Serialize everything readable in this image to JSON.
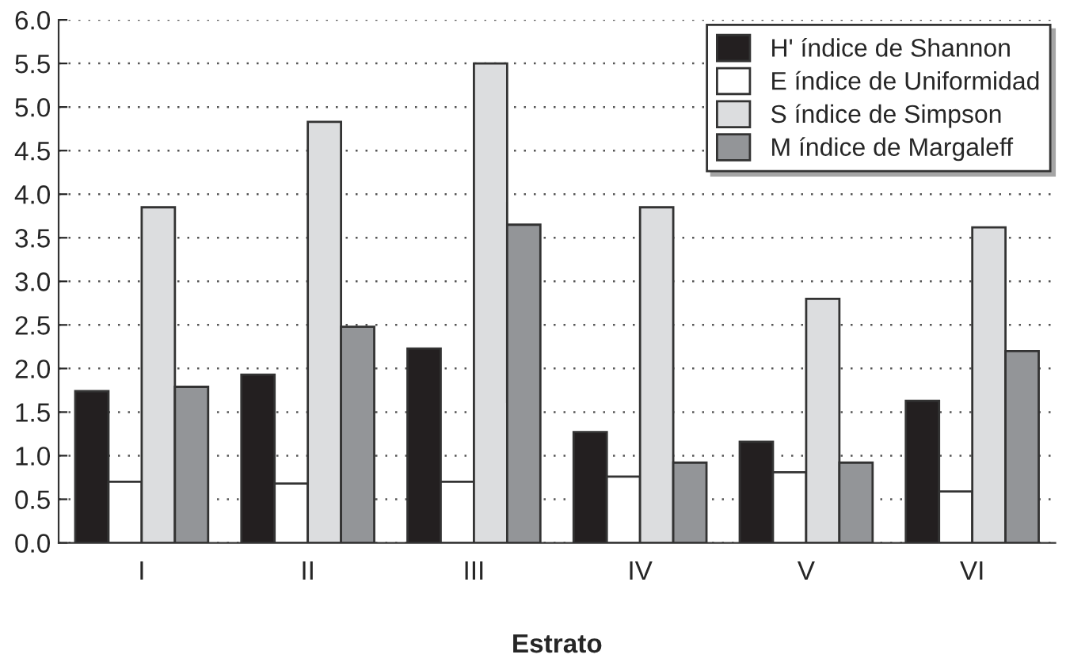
{
  "chart_data": {
    "type": "bar",
    "xlabel": "Estrato",
    "categories": [
      "I",
      "II",
      "III",
      "IV",
      "V",
      "VI"
    ],
    "series": [
      {
        "name": "H' índice de Shannon",
        "color": "#231f20",
        "values": [
          1.74,
          1.93,
          2.23,
          1.27,
          1.16,
          1.63
        ]
      },
      {
        "name": "E índice de Uniformidad",
        "color": "#ffffff",
        "values": [
          0.7,
          0.68,
          0.7,
          0.76,
          0.81,
          0.59
        ]
      },
      {
        "name": "S índice de Simpson",
        "color": "#dcdddf",
        "values": [
          3.85,
          4.83,
          5.5,
          3.85,
          2.8,
          3.62
        ]
      },
      {
        "name": "M índice de Margaleff",
        "color": "#939598",
        "values": [
          1.79,
          2.48,
          3.65,
          0.92,
          0.92,
          2.2
        ]
      }
    ],
    "ylim": [
      0,
      6
    ],
    "yticks": [
      {
        "value": 0,
        "label": "0.0"
      },
      {
        "value": 0.5,
        "label": "0.5"
      },
      {
        "value": 1,
        "label": "1.0"
      },
      {
        "value": 1.5,
        "label": "1.5"
      },
      {
        "value": 2,
        "label": "2.0"
      },
      {
        "value": 2.5,
        "label": "2.5"
      },
      {
        "value": 3,
        "label": "3.0"
      },
      {
        "value": 3.5,
        "label": "3.5"
      },
      {
        "value": 4,
        "label": "4.0"
      },
      {
        "value": 4.5,
        "label": "4.5"
      },
      {
        "value": 5,
        "label": "5.0"
      },
      {
        "value": 5.5,
        "label": "5.5"
      },
      {
        "value": 6,
        "label": "6.0"
      }
    ],
    "grid": "y",
    "legend": "top right"
  }
}
